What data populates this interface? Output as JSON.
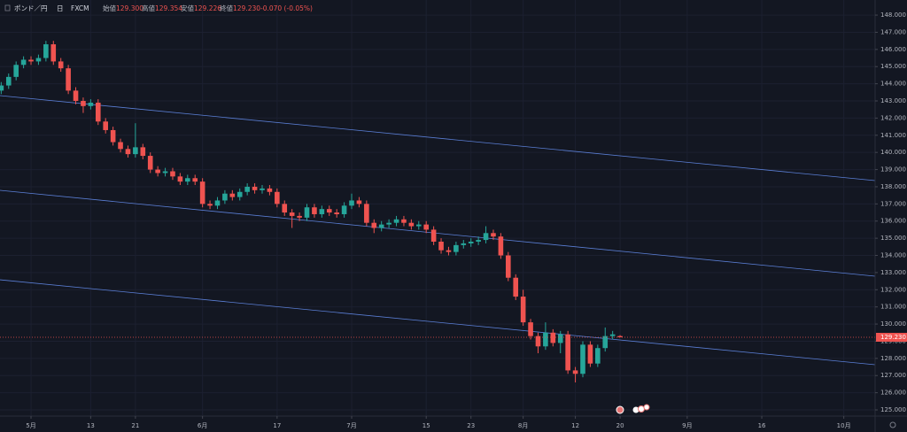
{
  "header": {
    "symbol": "ポンド／円",
    "interval": "日",
    "source": "FXCM",
    "open_label": "始値",
    "open": "129.300",
    "high_label": "高値",
    "high": "129.354",
    "low_label": "安値",
    "low": "129.226",
    "close_label": "終値",
    "close": "129.230",
    "change": "-0.070 (-0.05%)"
  },
  "chart_data": {
    "type": "candlestick",
    "x": [
      -4,
      -3,
      -2,
      -1,
      0,
      1,
      2,
      3,
      4,
      5,
      6,
      7,
      8,
      9,
      10,
      11,
      12,
      13,
      14,
      15,
      16,
      17,
      18,
      19,
      20,
      21,
      22,
      23,
      24,
      25,
      26,
      27,
      28,
      29,
      30,
      31,
      32,
      33,
      34,
      35,
      36,
      37,
      38,
      39,
      40,
      41,
      42,
      43,
      44,
      45,
      46,
      47,
      48,
      49,
      50,
      51,
      52,
      53,
      54,
      55,
      56,
      57,
      58,
      59,
      60,
      61,
      62,
      63,
      64,
      65,
      66,
      67,
      68,
      69,
      70,
      71,
      72,
      73,
      74,
      75,
      76,
      77,
      78,
      79
    ],
    "open": [
      143.6,
      143.9,
      144.4,
      145.1,
      145.4,
      145.3,
      145.5,
      146.3,
      145.3,
      144.9,
      143.6,
      143.0,
      142.7,
      142.9,
      141.8,
      141.3,
      140.6,
      140.2,
      139.9,
      140.3,
      139.8,
      139.0,
      138.8,
      138.9,
      138.6,
      138.3,
      138.5,
      138.3,
      137.0,
      136.9,
      137.2,
      137.6,
      137.4,
      137.7,
      138.0,
      137.8,
      137.9,
      137.7,
      137.0,
      136.5,
      136.3,
      136.2,
      136.8,
      136.4,
      136.7,
      136.5,
      136.4,
      136.9,
      137.2,
      137.0,
      135.9,
      135.6,
      135.8,
      135.9,
      136.1,
      135.9,
      135.7,
      135.8,
      135.5,
      134.8,
      134.3,
      134.2,
      134.6,
      134.7,
      134.8,
      134.9,
      135.3,
      135.1,
      134.0,
      132.7,
      131.6,
      130.1,
      129.3,
      128.7,
      129.5,
      128.9,
      129.4,
      127.3,
      127.1,
      128.8,
      127.7,
      128.6,
      129.3,
      129.3
    ],
    "high": [
      144.1,
      144.6,
      145.3,
      145.6,
      145.6,
      145.7,
      146.5,
      146.5,
      145.5,
      145.1,
      143.8,
      143.2,
      143.1,
      143.1,
      142.0,
      141.5,
      140.8,
      140.4,
      141.7,
      140.5,
      140.0,
      139.2,
      139.1,
      139.1,
      138.8,
      138.7,
      138.7,
      138.5,
      137.2,
      137.4,
      137.8,
      137.8,
      137.9,
      138.2,
      138.2,
      138.1,
      138.1,
      137.9,
      137.2,
      136.7,
      136.5,
      137.0,
      137.0,
      136.9,
      136.9,
      136.7,
      137.1,
      137.6,
      137.4,
      137.2,
      136.1,
      136.0,
      136.1,
      136.3,
      136.3,
      136.1,
      136.0,
      136.0,
      135.7,
      135.0,
      134.5,
      134.8,
      134.9,
      135.0,
      135.1,
      135.7,
      135.5,
      135.3,
      134.2,
      132.9,
      132.0,
      130.3,
      129.5,
      130.1,
      129.7,
      129.6,
      129.6,
      127.5,
      129.0,
      129.0,
      128.8,
      129.8,
      129.6,
      129.354
    ],
    "low": [
      143.4,
      143.7,
      144.2,
      144.9,
      145.1,
      145.1,
      145.3,
      145.1,
      144.7,
      143.4,
      142.8,
      142.3,
      142.5,
      141.6,
      141.1,
      140.4,
      140.0,
      139.7,
      139.7,
      139.6,
      138.8,
      138.6,
      138.6,
      138.4,
      138.1,
      138.1,
      138.1,
      136.8,
      136.7,
      136.7,
      137.0,
      137.2,
      137.2,
      137.5,
      137.6,
      137.6,
      137.5,
      136.8,
      136.3,
      135.6,
      136.0,
      136.0,
      136.2,
      136.2,
      136.3,
      136.2,
      136.2,
      136.7,
      136.8,
      135.7,
      135.3,
      135.4,
      135.6,
      135.7,
      135.7,
      135.5,
      135.5,
      135.3,
      134.6,
      134.1,
      134.0,
      134.0,
      134.4,
      134.5,
      134.6,
      134.7,
      134.9,
      133.8,
      132.5,
      131.4,
      129.9,
      129.1,
      128.3,
      128.5,
      128.7,
      128.3,
      127.1,
      126.6,
      126.9,
      127.5,
      127.5,
      128.4,
      129.1,
      129.226
    ],
    "close": [
      143.9,
      144.4,
      145.1,
      145.4,
      145.3,
      145.5,
      146.3,
      145.3,
      144.9,
      143.6,
      143.0,
      142.7,
      142.9,
      141.8,
      141.3,
      140.6,
      140.2,
      139.9,
      140.3,
      139.8,
      139.0,
      138.8,
      138.9,
      138.6,
      138.3,
      138.5,
      138.3,
      137.0,
      136.9,
      137.2,
      137.6,
      137.4,
      137.7,
      138.0,
      137.8,
      137.9,
      137.7,
      137.0,
      136.5,
      136.3,
      136.2,
      136.8,
      136.4,
      136.7,
      136.5,
      136.4,
      136.9,
      137.2,
      137.0,
      135.9,
      135.6,
      135.8,
      135.9,
      136.1,
      135.9,
      135.7,
      135.8,
      135.5,
      134.8,
      134.3,
      134.2,
      134.6,
      134.7,
      134.8,
      134.9,
      135.3,
      135.1,
      134.0,
      132.7,
      131.6,
      130.1,
      129.3,
      128.7,
      129.5,
      128.9,
      129.4,
      127.3,
      127.1,
      128.8,
      127.7,
      128.6,
      129.3,
      129.4,
      129.23
    ],
    "up_color": "#26a69a",
    "down_color": "#ef5350",
    "xlim": [
      -4.16,
      113.2
    ],
    "xticks": [
      {
        "value": 0,
        "label": "5月"
      },
      {
        "value": 8,
        "label": "13"
      },
      {
        "value": 14,
        "label": "21"
      },
      {
        "value": 23,
        "label": "6月"
      },
      {
        "value": 33,
        "label": "17"
      },
      {
        "value": 43,
        "label": "7月"
      },
      {
        "value": 53,
        "label": "15"
      },
      {
        "value": 59,
        "label": "23"
      },
      {
        "value": 66,
        "label": "8月"
      },
      {
        "value": 73,
        "label": "12"
      },
      {
        "value": 79,
        "label": "20"
      },
      {
        "value": 88,
        "label": "9月"
      },
      {
        "value": 98,
        "label": "16"
      },
      {
        "value": 109,
        "label": "10月"
      }
    ],
    "ylim": [
      124.64,
      148.88
    ],
    "yticks": [
      {
        "value": 125,
        "label": "125.000"
      },
      {
        "value": 126,
        "label": "126.000"
      },
      {
        "value": 127,
        "label": "127.000"
      },
      {
        "value": 128,
        "label": "128.000"
      },
      {
        "value": 129,
        "label": "129.000"
      },
      {
        "value": 130,
        "label": "130.000"
      },
      {
        "value": 131,
        "label": "131.000"
      },
      {
        "value": 132,
        "label": "132.000"
      },
      {
        "value": 133,
        "label": "133.000"
      },
      {
        "value": 134,
        "label": "134.000"
      },
      {
        "value": 135,
        "label": "135.000"
      },
      {
        "value": 136,
        "label": "136.000"
      },
      {
        "value": 137,
        "label": "137.000"
      },
      {
        "value": 138,
        "label": "138.000"
      },
      {
        "value": 139,
        "label": "139.000"
      },
      {
        "value": 140,
        "label": "140.000"
      },
      {
        "value": 141,
        "label": "141.000"
      },
      {
        "value": 142,
        "label": "142.000"
      },
      {
        "value": 143,
        "label": "143.000"
      },
      {
        "value": 144,
        "label": "144.000"
      },
      {
        "value": 145,
        "label": "145.000"
      },
      {
        "value": 146,
        "label": "146.000"
      },
      {
        "value": 147,
        "label": "147.000"
      },
      {
        "value": 148,
        "label": "148.000"
      }
    ],
    "grid": true,
    "last_price": {
      "value": 129.23,
      "label": "129.230"
    },
    "trend_color": "#5b7fd6",
    "trend_lines": [
      {
        "x": [
          -4.16,
          113.2
        ],
        "y": [
          143.31,
          138.36
        ]
      },
      {
        "x": [
          -4.16,
          113.2
        ],
        "y": [
          137.79,
          132.79
        ]
      },
      {
        "x": [
          -4.16,
          113.2
        ],
        "y": [
          132.58,
          127.63
        ]
      }
    ]
  }
}
